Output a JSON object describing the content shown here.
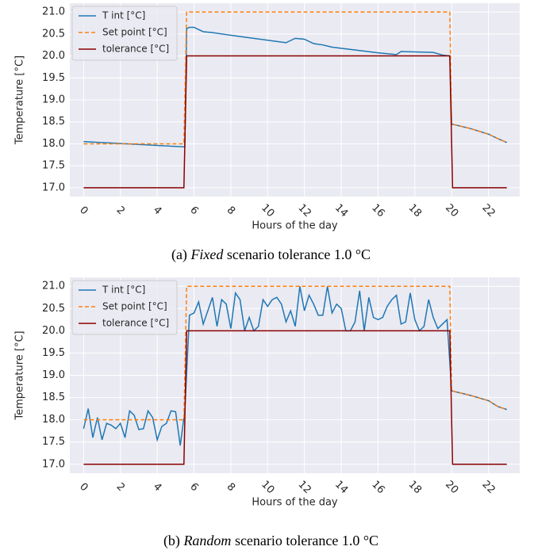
{
  "chart_data": [
    {
      "type": "line",
      "caption": {
        "label": "(a)",
        "emph": "Fixed",
        "text": "scenario tolerance 1.0 °C"
      },
      "xlabel": "Hours of the day",
      "ylabel": "Temperature [°C]",
      "xlim": [
        -0.75,
        23.7
      ],
      "ylim": [
        16.8,
        21.2
      ],
      "xticks": [
        0,
        2,
        4,
        6,
        8,
        10,
        12,
        14,
        16,
        18,
        20,
        22
      ],
      "yticks": [
        {
          "value": 17,
          "label": "17.0"
        },
        {
          "value": 17.5,
          "label": "17.5"
        },
        {
          "value": 18,
          "label": "18.0"
        },
        {
          "value": 18.5,
          "label": "18.5"
        },
        {
          "value": 19,
          "label": "19.0"
        },
        {
          "value": 19.5,
          "label": "19.5"
        },
        {
          "value": 20,
          "label": "20.0"
        },
        {
          "value": 20.5,
          "label": "20.5"
        },
        {
          "value": 21,
          "label": "21.0"
        }
      ],
      "grid": true,
      "legend": "upper left",
      "series": [
        {
          "name": "T int [°C]",
          "color": "#1f77b4",
          "dash": false,
          "x": [
            0,
            5.5,
            5.6,
            5.75,
            6,
            6.5,
            7,
            7.5,
            8,
            11,
            11.5,
            12,
            12.5,
            13,
            13.5,
            16,
            17,
            17.25,
            18,
            19,
            19.5,
            19.9,
            20,
            21,
            22,
            22.5,
            23
          ],
          "values": [
            18.05,
            17.93,
            20.62,
            20.65,
            20.65,
            20.55,
            20.53,
            20.5,
            20.47,
            20.3,
            20.4,
            20.38,
            20.28,
            20.25,
            20.2,
            20.07,
            20.03,
            20.1,
            20.09,
            20.08,
            20.02,
            20.0,
            18.45,
            18.35,
            18.22,
            18.12,
            18.03
          ]
        },
        {
          "name": "Set point [°C]",
          "color": "#ff7f0e",
          "dash": true,
          "x": [
            0,
            5.45,
            5.6,
            19.9,
            20,
            21,
            22,
            22.5,
            23
          ],
          "values": [
            18,
            18,
            21,
            21,
            18.45,
            18.35,
            18.22,
            18.12,
            18.03
          ]
        },
        {
          "name": "tolerance [°C]",
          "color": "#8b0000",
          "dash": false,
          "x": [
            0,
            5.45,
            5.6,
            19.9,
            20.05,
            23
          ],
          "values": [
            17,
            17,
            20,
            20,
            17,
            17
          ]
        }
      ]
    },
    {
      "type": "line",
      "caption": {
        "label": "(b)",
        "emph": "Random",
        "text": "scenario tolerance 1.0 °C"
      },
      "xlabel": "Hours of the day",
      "ylabel": "Temperature [°C]",
      "xlim": [
        -0.75,
        23.7
      ],
      "ylim": [
        16.8,
        21.2
      ],
      "xticks": [
        0,
        2,
        4,
        6,
        8,
        10,
        12,
        14,
        16,
        18,
        20,
        22
      ],
      "yticks": [
        {
          "value": 17,
          "label": "17.0"
        },
        {
          "value": 17.5,
          "label": "17.5"
        },
        {
          "value": 18,
          "label": "18.0"
        },
        {
          "value": 18.5,
          "label": "18.5"
        },
        {
          "value": 19,
          "label": "19.0"
        },
        {
          "value": 19.5,
          "label": "19.5"
        },
        {
          "value": 20,
          "label": "20.0"
        },
        {
          "value": 20.5,
          "label": "20.5"
        },
        {
          "value": 21,
          "label": "21.0"
        }
      ],
      "grid": true,
      "legend": "upper left",
      "series": [
        {
          "name": "T int [°C]",
          "color": "#1f77b4",
          "dash": false,
          "x": [
            0,
            0.25,
            0.5,
            0.75,
            1,
            1.25,
            1.5,
            1.75,
            2,
            2.25,
            2.5,
            2.75,
            3,
            3.25,
            3.5,
            3.75,
            4,
            4.25,
            4.5,
            4.75,
            5,
            5.25,
            5.5,
            5.75,
            6,
            6.25,
            6.5,
            6.75,
            7,
            7.25,
            7.5,
            7.75,
            8,
            8.25,
            8.5,
            8.75,
            9,
            9.25,
            9.5,
            9.75,
            10,
            10.25,
            10.5,
            10.75,
            11,
            11.25,
            11.5,
            11.75,
            12,
            12.25,
            12.5,
            12.75,
            13,
            13.25,
            13.5,
            13.75,
            14,
            14.25,
            14.5,
            14.75,
            15,
            15.25,
            15.5,
            15.75,
            16,
            16.25,
            16.5,
            16.75,
            17,
            17.25,
            17.5,
            17.75,
            18,
            18.25,
            18.5,
            18.75,
            19,
            19.25,
            19.5,
            19.75,
            20,
            21,
            22,
            22.5,
            23
          ],
          "values": [
            17.8,
            18.25,
            17.6,
            18.05,
            17.55,
            17.92,
            17.88,
            17.8,
            17.92,
            17.6,
            18.2,
            18.1,
            17.78,
            17.8,
            18.2,
            18.05,
            17.55,
            17.85,
            17.92,
            18.2,
            18.18,
            17.42,
            18.2,
            20.35,
            20.4,
            20.65,
            20.15,
            20.45,
            20.75,
            20.1,
            20.7,
            20.6,
            20.05,
            20.85,
            20.7,
            20.0,
            20.3,
            20.0,
            20.1,
            20.7,
            20.55,
            20.7,
            20.75,
            20.6,
            20.2,
            20.45,
            20.1,
            21.0,
            20.45,
            20.8,
            20.6,
            20.35,
            20.35,
            21.0,
            20.4,
            20.6,
            20.5,
            20.0,
            20.0,
            20.2,
            20.9,
            20.0,
            20.75,
            20.3,
            20.25,
            20.3,
            20.55,
            20.7,
            20.8,
            20.15,
            20.2,
            20.85,
            20.25,
            20.0,
            20.1,
            20.7,
            20.3,
            20.05,
            20.15,
            20.25,
            18.65,
            18.55,
            18.43,
            18.3,
            18.23
          ]
        },
        {
          "name": "Set point [°C]",
          "color": "#ff7f0e",
          "dash": true,
          "x": [
            0,
            5.45,
            5.6,
            19.9,
            20,
            21,
            22,
            22.5,
            23
          ],
          "values": [
            18,
            18,
            21,
            21,
            18.65,
            18.55,
            18.43,
            18.3,
            18.23
          ]
        },
        {
          "name": "tolerance [°C]",
          "color": "#8b0000",
          "dash": false,
          "x": [
            0,
            5.45,
            5.6,
            19.9,
            20.05,
            23
          ],
          "values": [
            17,
            17,
            20,
            20,
            17,
            17
          ]
        }
      ]
    }
  ]
}
